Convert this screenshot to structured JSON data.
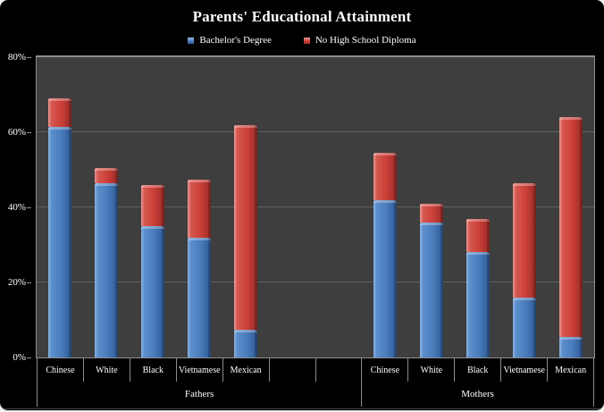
{
  "chart_data": {
    "type": "bar",
    "subtype": "stacked",
    "title": "Parents' Educational Attainment",
    "ylabel": "",
    "ylim": [
      0,
      80
    ],
    "y_tick_values": [
      0,
      20,
      40,
      60,
      80
    ],
    "y_tick_labels": [
      "0%",
      "20%",
      "40%",
      "60%",
      "80%"
    ],
    "grid": true,
    "legend_position": "top",
    "series_names": [
      "Bachelor's Degree",
      "No High School Diploma"
    ],
    "empty_slots_between_groups": 2,
    "groups": [
      {
        "label": "Fathers",
        "categories": [
          "Chinese",
          "White",
          "Black",
          "Vietnamese",
          "Mexican"
        ],
        "series": [
          {
            "name": "Bachelor's Degree",
            "values": [
              61.5,
              46.5,
              35,
              32,
              7.5
            ]
          },
          {
            "name": "No High School Diploma",
            "values": [
              7.5,
              4,
              11,
              15.5,
              54.5
            ]
          }
        ],
        "stacked_totals": [
          69,
          50.5,
          46,
          47.5,
          62
        ]
      },
      {
        "label": "Mothers",
        "categories": [
          "Chinese",
          "White",
          "Black",
          "Vietnamese",
          "Mexican"
        ],
        "series": [
          {
            "name": "Bachelor's Degree",
            "values": [
              42,
              36,
              28,
              16,
              5.5
            ]
          },
          {
            "name": "No High School Diploma",
            "values": [
              12.5,
              5,
              9,
              30.5,
              58.5
            ]
          }
        ],
        "stacked_totals": [
          54.5,
          41,
          37,
          46.5,
          64
        ]
      }
    ],
    "colors": {
      "bachelors_blue": "#4a7dbd",
      "no_high_school_red": "#cc4038",
      "plot_background": "#3e3e3e",
      "gridline": "#616161",
      "axis_line": "#8c8c8c",
      "chart_background": "#000000",
      "text": "#ffffff"
    }
  }
}
